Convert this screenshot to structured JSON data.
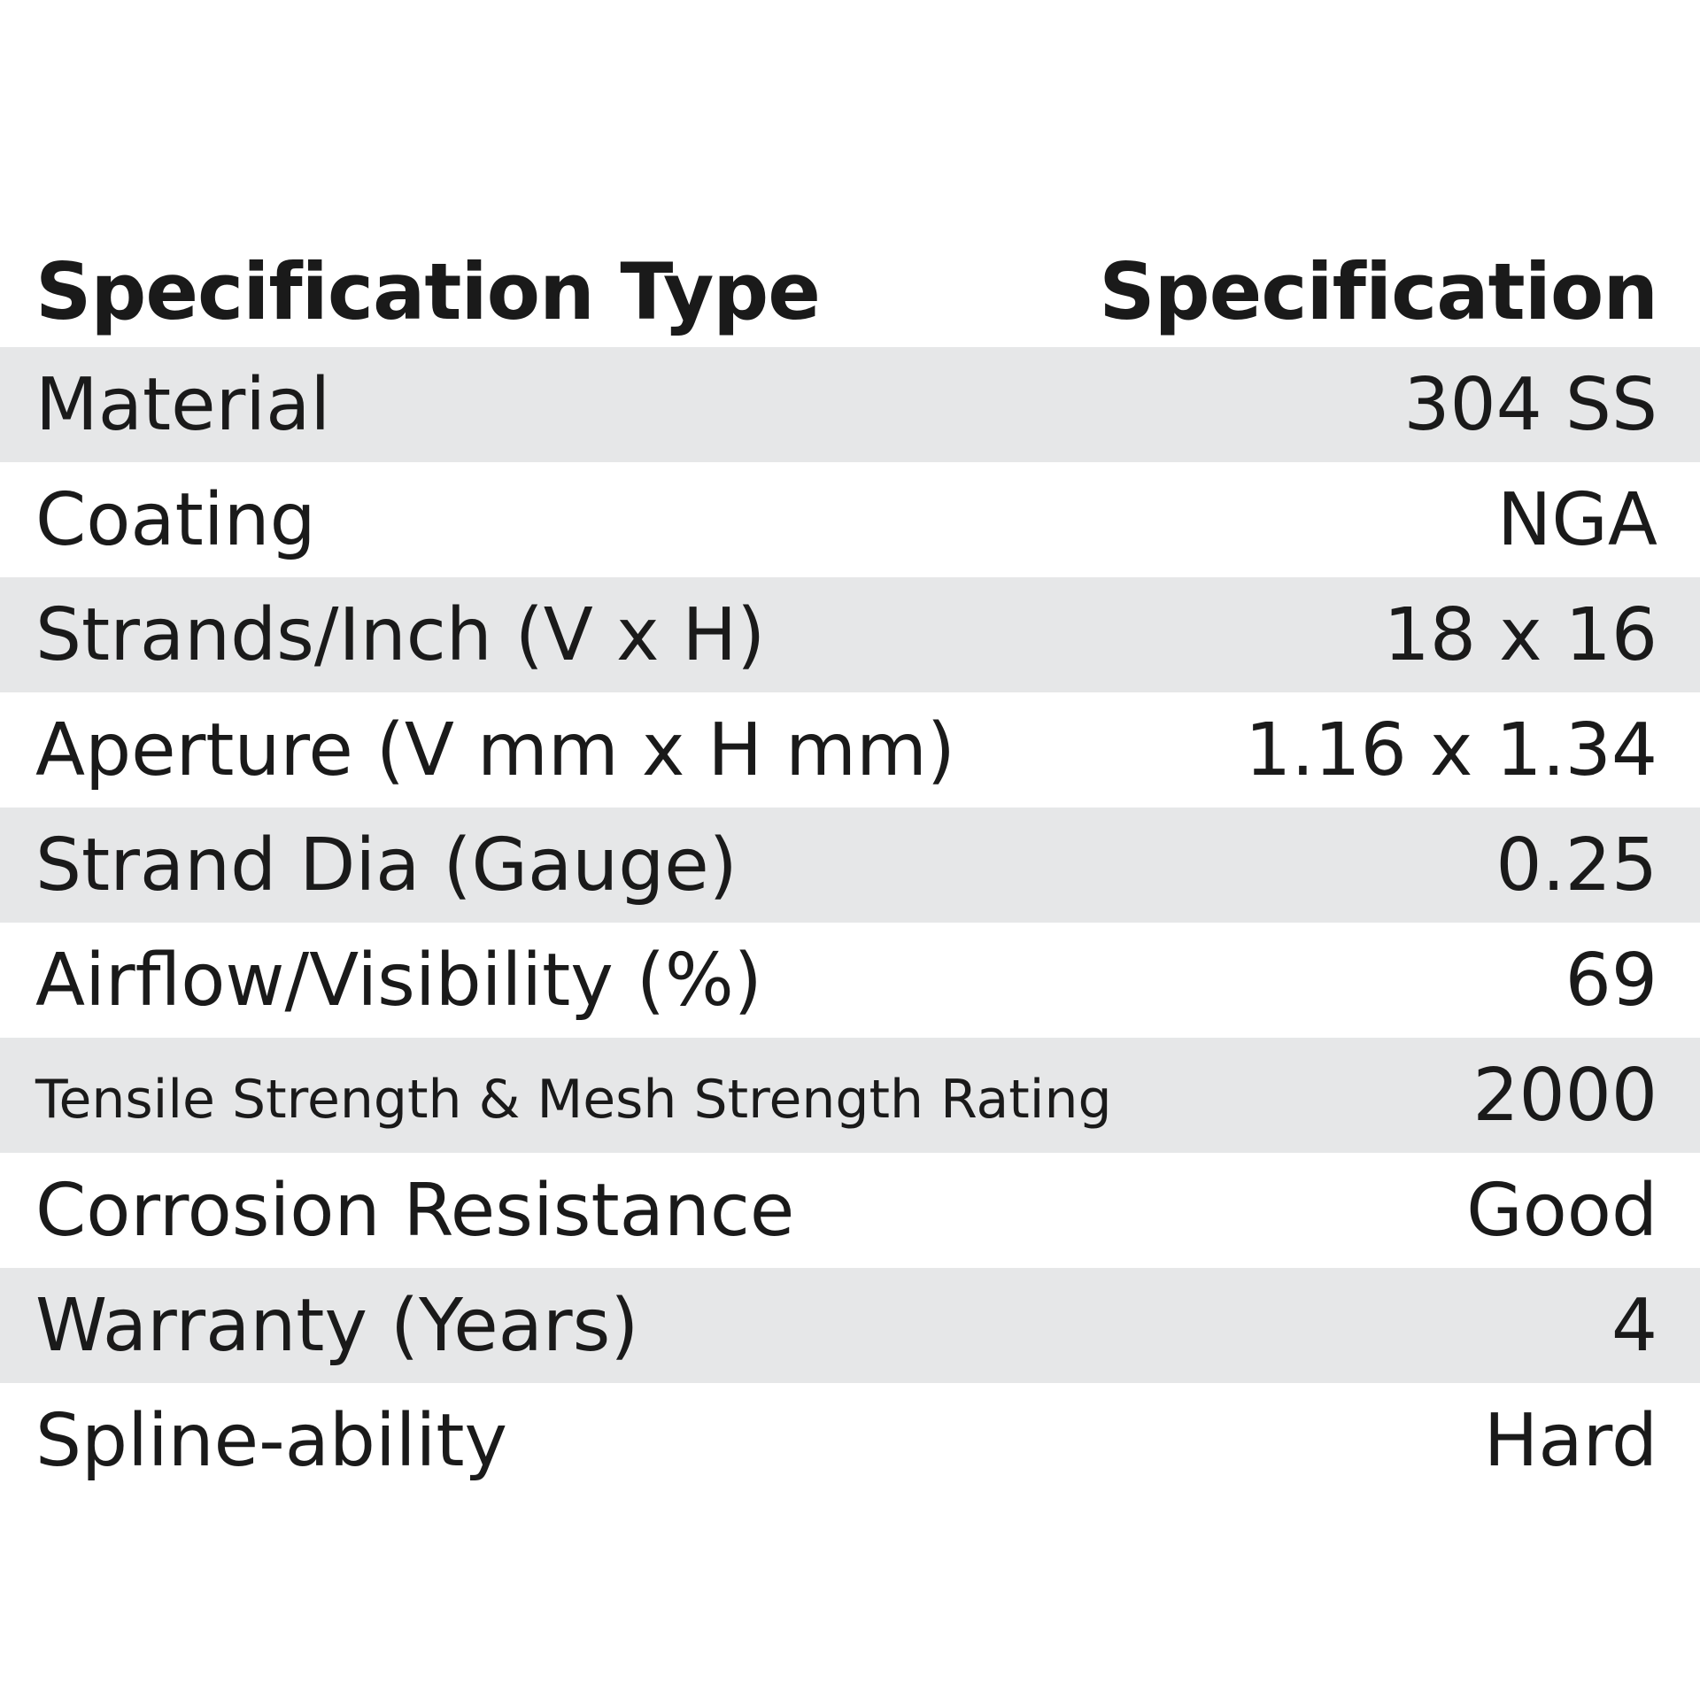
{
  "header": {
    "type_label": "Specification Type",
    "spec_label": "Specification"
  },
  "rows": [
    {
      "type": "Material",
      "value": "304 SS"
    },
    {
      "type": "Coating",
      "value": "NGA"
    },
    {
      "type": "Strands/Inch (V x H)",
      "value": "18 x 16"
    },
    {
      "type": "Aperture (V mm x H mm)",
      "value": "1.16 x 1.34"
    },
    {
      "type": "Strand Dia (Gauge)",
      "value": "0.25"
    },
    {
      "type": "Airflow/Visibility (%)",
      "value": "69"
    },
    {
      "type": "Tensile Strength & Mesh Strength Rating",
      "value": "2000"
    },
    {
      "type": "Corrosion Resistance",
      "value": "Good"
    },
    {
      "type": "Warranty (Years)",
      "value": "4"
    },
    {
      "type": "Spline-ability",
      "value": "Hard"
    }
  ],
  "colors": {
    "row_shade": "#e6e7e8",
    "text": "#1a1a1a",
    "background": "#ffffff"
  }
}
